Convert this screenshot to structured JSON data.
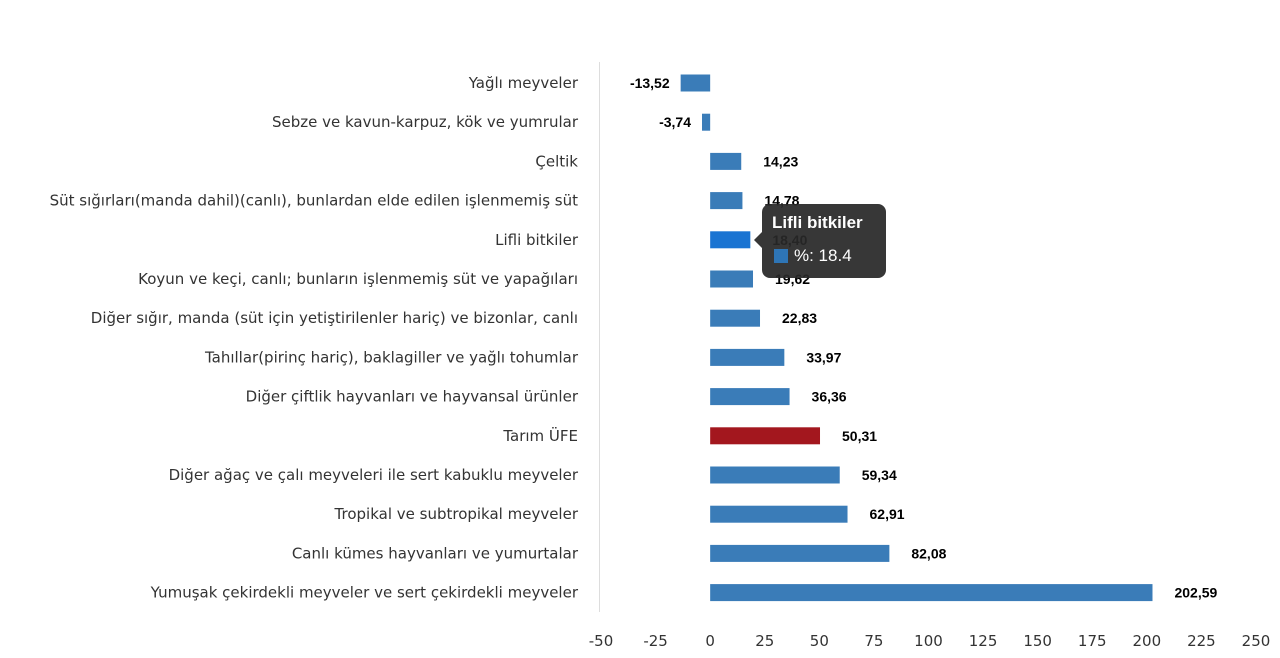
{
  "chart_data": {
    "type": "bar",
    "orientation": "horizontal",
    "categories": [
      "Yağlı meyveler",
      "Sebze ve kavun-karpuz, kök ve yumrular",
      "Çeltik",
      "Süt sığırları(manda dahil)(canlı), bunlardan elde edilen işlenmemiş süt",
      "Lifli bitkiler",
      "Koyun ve keçi, canlı; bunların işlenmemiş süt ve yapağıları",
      "Diğer sığır, manda (süt için yetiştirilenler hariç) ve bizonlar, canlı",
      "Tahıllar(pirinç hariç), baklagiller ve yağlı tohumlar",
      "Diğer çiftlik hayvanları ve hayvansal ürünler",
      "Tarım ÜFE",
      "Diğer ağaç ve çalı meyveleri ile sert kabuklu meyveler",
      "Tropikal ve subtropikal meyveler",
      "Canlı kümes hayvanları ve yumurtalar",
      "Yumuşak çekirdekli meyveler ve sert çekirdekli meyveler"
    ],
    "values": [
      -13.52,
      -3.74,
      14.23,
      14.78,
      18.4,
      19.62,
      22.83,
      33.97,
      36.36,
      50.31,
      59.34,
      62.91,
      82.08,
      202.59
    ],
    "data_labels": [
      "-13,52",
      "-3,74",
      "14,23",
      "14,78",
      "18,40",
      "19,62",
      "22,83",
      "33,97",
      "36,36",
      "50,31",
      "59,34",
      "62,91",
      "82,08",
      "202,59"
    ],
    "xlim": [
      -50,
      250
    ],
    "xticks": [
      -50,
      -25,
      0,
      25,
      50,
      75,
      100,
      125,
      150,
      175,
      200,
      225,
      250
    ],
    "series_name": "%",
    "colors": {
      "bar": "#3a7cb8",
      "highlight": "#a3171e",
      "hover": "#1a74d2"
    },
    "highlight_index": 9,
    "hover_index": 4,
    "grid": false
  },
  "tooltip": {
    "title": "Lifli bitkiler",
    "value": "%: 18.4"
  }
}
